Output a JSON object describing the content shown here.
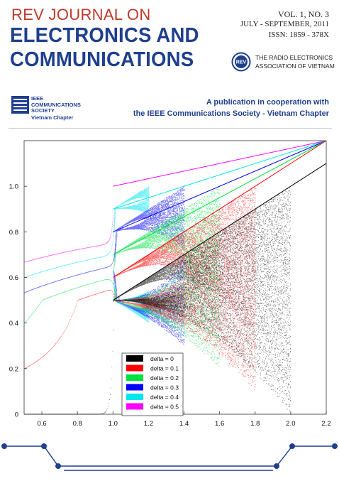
{
  "header": {
    "journal_prefix": "REV JOURNAL ON",
    "journal_title_1": "ELECTRONICS AND",
    "journal_title_2": "COMMUNICATIONS",
    "volume": "VOL. 1, NO. 3",
    "date": "JULY - SEPTEMBER, 2011",
    "issn": "ISSN: 1859 - 378X",
    "association_line1": "THE RADIO ELECTRONICS",
    "association_line2": "ASSOCIATION OF VIETNAM",
    "rev_logo_text": "REV"
  },
  "ieee": {
    "line1": "IEEE",
    "line2": "COMMUNICATIONS",
    "line3": "SOCIETY",
    "chapter": "Vietnam Chapter"
  },
  "publication": {
    "line1": "A publication in cooperation with",
    "line2": "the IEEE Communications Society - Vietnam Chapter"
  },
  "colors": {
    "brand_blue": "#1f3f8f",
    "brand_red": "#c0392b"
  },
  "chart_data": {
    "type": "scatter",
    "title": "",
    "xlabel": "",
    "ylabel": "",
    "xlim": [
      0.5,
      2.2
    ],
    "ylim": [
      0,
      1.2
    ],
    "x_ticks": [
      "0.6",
      "0.8",
      "1.0",
      "1.2",
      "1.4",
      "1.6",
      "1.8",
      "2.0",
      "2.2"
    ],
    "y_ticks": [
      "0",
      "0.2",
      "0.4",
      "0.6",
      "0.8",
      "1.0"
    ],
    "grid": false,
    "legend_position": "bottom-left",
    "series": [
      {
        "name": "delta = 0",
        "color": "#000000",
        "delta": 0.0,
        "x_end": 2.0
      },
      {
        "name": "delta = 0.1",
        "color": "#ff0000",
        "delta": 0.1,
        "x_end": 1.8
      },
      {
        "name": "delta = 0.2",
        "color": "#00e040",
        "delta": 0.2,
        "x_end": 1.6
      },
      {
        "name": "delta = 0.3",
        "color": "#0000ff",
        "delta": 0.3,
        "x_end": 1.4
      },
      {
        "name": "delta = 0.4",
        "color": "#00e5ee",
        "delta": 0.4,
        "x_end": 1.2
      },
      {
        "name": "delta = 0.5",
        "color": "#ff00ff",
        "delta": 0.5,
        "x_end": 1.0
      }
    ]
  }
}
